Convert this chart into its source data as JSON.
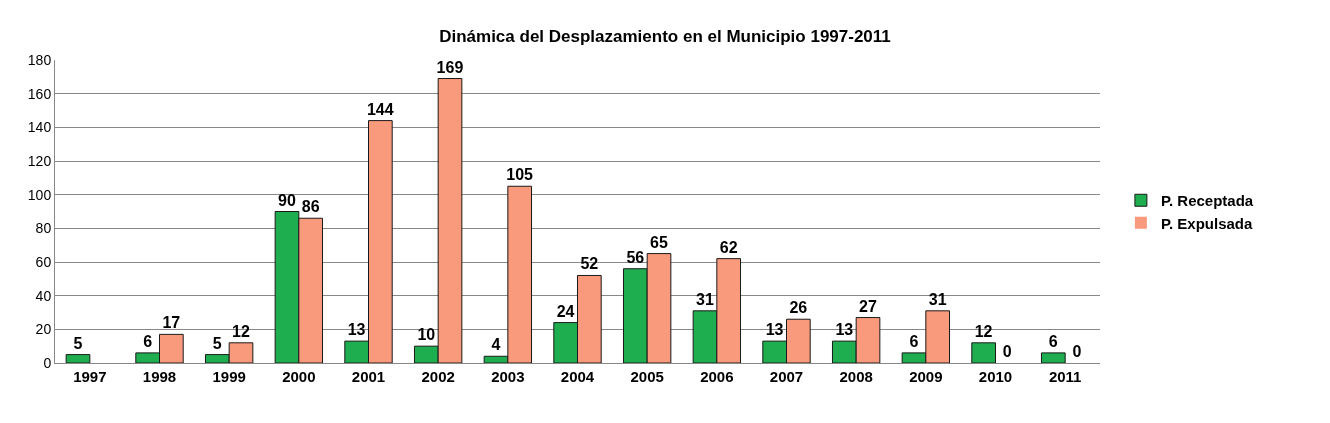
{
  "chart_data": {
    "type": "bar",
    "title": "Dinámica del Desplazamiento en el Municipio 1997-2011",
    "categories": [
      "1997",
      "1998",
      "1999",
      "2000",
      "2001",
      "2002",
      "2003",
      "2004",
      "2005",
      "2006",
      "2007",
      "2008",
      "2009",
      "2010",
      "2011"
    ],
    "series": [
      {
        "name": "P. Receptada",
        "color": "#1fae4f",
        "values": [
          5,
          6,
          5,
          90,
          13,
          10,
          4,
          24,
          56,
          31,
          13,
          13,
          6,
          12,
          6
        ]
      },
      {
        "name": "P. Expulsada",
        "color": "#fa9a7d",
        "values": [
          null,
          17,
          12,
          86,
          144,
          169,
          105,
          52,
          65,
          62,
          26,
          27,
          31,
          0,
          0
        ]
      }
    ],
    "ylim": [
      0,
      180
    ],
    "yticks": [
      0,
      20,
      40,
      60,
      80,
      100,
      120,
      140,
      160,
      180
    ],
    "grid": "y",
    "legend": "right",
    "data_labels": true
  }
}
